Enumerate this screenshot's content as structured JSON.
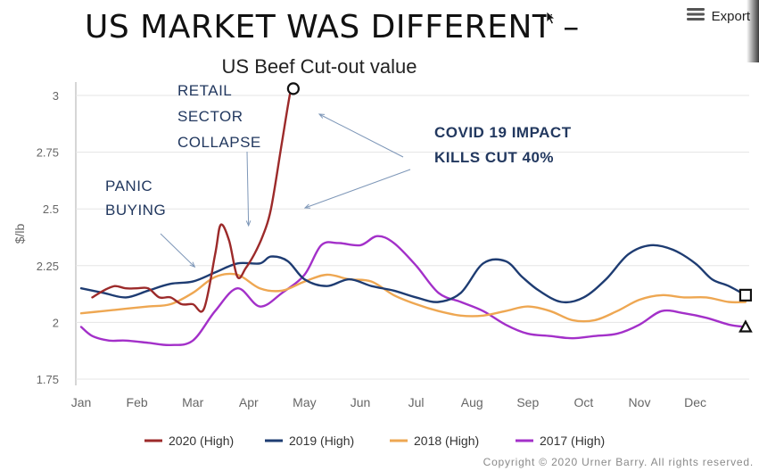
{
  "slide": {
    "title": "US MARKET WAS DIFFERENT –",
    "export_label": "Export",
    "copyright": "Copyright © 2020 Urner Barry. All rights reserved."
  },
  "colors": {
    "2020": "#9c2a2a",
    "2019": "#1e3c72",
    "2018": "#eea752",
    "2017": "#a330c9",
    "annotation_dark": "#22385f",
    "grid": "#e5e5e5"
  },
  "chart_data": {
    "type": "line",
    "title": "US Beef Cut-out value",
    "xlabel": "",
    "ylabel": "$/lb",
    "ylim": [
      1.75,
      3.0
    ],
    "yticks": [
      "1.75",
      "2",
      "2.25",
      "2.5",
      "2.75",
      "3"
    ],
    "xticks": [
      "Jan",
      "Feb",
      "Mar",
      "Apr",
      "May",
      "Jun",
      "Jul",
      "Aug",
      "Sep",
      "Oct",
      "Nov",
      "Dec"
    ],
    "grid": true,
    "legend": "bottom",
    "series": [
      {
        "name": "2020 (High)",
        "x": [
          0.2,
          0.4,
          0.6,
          0.8,
          1.0,
          1.2,
          1.4,
          1.6,
          1.8,
          2.0,
          2.2,
          2.4,
          2.5,
          2.65,
          2.8,
          2.95,
          3.1,
          3.25,
          3.4,
          3.6,
          3.75,
          3.8
        ],
        "values": [
          2.11,
          2.14,
          2.16,
          2.15,
          2.15,
          2.15,
          2.11,
          2.11,
          2.08,
          2.08,
          2.06,
          2.3,
          2.43,
          2.36,
          2.2,
          2.24,
          2.3,
          2.38,
          2.5,
          2.8,
          3.02,
          3.03
        ]
      },
      {
        "name": "2019 (High)",
        "x": [
          0.0,
          0.4,
          0.8,
          1.2,
          1.6,
          2.0,
          2.4,
          2.8,
          3.2,
          3.4,
          3.7,
          4.0,
          4.4,
          4.8,
          5.2,
          5.6,
          6.0,
          6.4,
          6.8,
          7.2,
          7.6,
          7.9,
          8.2,
          8.6,
          9.0,
          9.4,
          9.8,
          10.2,
          10.6,
          11.0,
          11.3,
          11.6,
          11.9
        ],
        "values": [
          2.15,
          2.13,
          2.11,
          2.14,
          2.17,
          2.18,
          2.22,
          2.26,
          2.26,
          2.29,
          2.27,
          2.19,
          2.16,
          2.19,
          2.16,
          2.14,
          2.11,
          2.09,
          2.13,
          2.26,
          2.27,
          2.2,
          2.14,
          2.09,
          2.11,
          2.19,
          2.3,
          2.34,
          2.32,
          2.26,
          2.19,
          2.16,
          2.12
        ]
      },
      {
        "name": "2018 (High)",
        "x": [
          0.0,
          0.4,
          0.8,
          1.2,
          1.6,
          2.0,
          2.4,
          2.8,
          3.2,
          3.6,
          4.0,
          4.4,
          4.8,
          5.2,
          5.6,
          6.0,
          6.4,
          6.8,
          7.2,
          7.6,
          8.0,
          8.4,
          8.8,
          9.2,
          9.6,
          10.0,
          10.4,
          10.8,
          11.2,
          11.6,
          11.9
        ],
        "values": [
          2.04,
          2.05,
          2.06,
          2.07,
          2.08,
          2.13,
          2.2,
          2.21,
          2.15,
          2.14,
          2.18,
          2.21,
          2.19,
          2.18,
          2.12,
          2.08,
          2.05,
          2.03,
          2.03,
          2.05,
          2.07,
          2.05,
          2.01,
          2.01,
          2.05,
          2.1,
          2.12,
          2.11,
          2.11,
          2.09,
          2.09
        ]
      },
      {
        "name": "2017 (High)",
        "x": [
          0.0,
          0.2,
          0.5,
          0.8,
          1.2,
          1.6,
          2.0,
          2.4,
          2.8,
          3.2,
          3.6,
          4.0,
          4.3,
          4.6,
          5.0,
          5.3,
          5.6,
          6.0,
          6.4,
          6.8,
          7.2,
          7.6,
          8.0,
          8.4,
          8.8,
          9.2,
          9.6,
          10.0,
          10.4,
          10.8,
          11.2,
          11.6,
          11.9
        ],
        "values": [
          1.98,
          1.94,
          1.92,
          1.92,
          1.91,
          1.9,
          1.92,
          2.05,
          2.15,
          2.07,
          2.13,
          2.21,
          2.34,
          2.35,
          2.34,
          2.38,
          2.35,
          2.25,
          2.13,
          2.09,
          2.05,
          1.99,
          1.95,
          1.94,
          1.93,
          1.94,
          1.95,
          1.99,
          2.05,
          2.04,
          2.02,
          1.99,
          1.98
        ]
      }
    ],
    "end_markers": [
      {
        "series": "2020 (High)",
        "shape": "circle",
        "x": 3.8,
        "value": 3.03
      },
      {
        "series": "2019 (High)",
        "shape": "square",
        "x": 11.9,
        "value": 2.12
      },
      {
        "series": "2017 (High)",
        "shape": "triangle",
        "x": 11.9,
        "value": 1.98
      }
    ],
    "annotations": [
      {
        "id": "panic",
        "lines": [
          "PANIC",
          "BUYING"
        ],
        "bold": false,
        "arrow_to": [
          2.05,
          2.26
        ]
      },
      {
        "id": "retail",
        "lines": [
          "RETAIL",
          "SECTOR",
          "COLLAPSE"
        ],
        "bold": false,
        "arrow_to": [
          2.95,
          2.45
        ]
      },
      {
        "id": "covid",
        "lines": [
          "COVID 19 IMPACT",
          "KILLS CUT 40%"
        ],
        "bold": true
      }
    ]
  }
}
